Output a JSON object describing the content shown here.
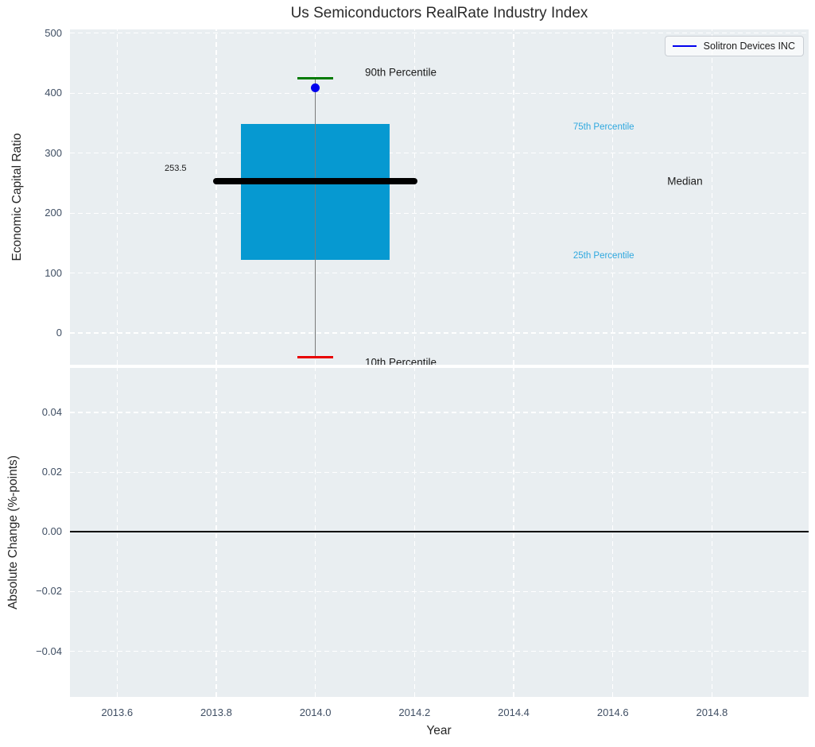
{
  "legend": {
    "label": "Solitron Devices INC",
    "line_color": "#0000ee"
  },
  "colors": {
    "plot_bg": "#e9eef1",
    "grid": "#ffffff",
    "box_fill": "#0699d1",
    "median_line": "#000000",
    "whisker": "#7a7a7a",
    "p90_cap": "#007a00",
    "p10_cap": "#e80000",
    "point_fill": "#0000ee",
    "zero_line": "#000000",
    "tick_label": "#3f4e63",
    "percentile_text": "#2fa8df",
    "black_text": "#1a1a1a"
  },
  "chart_data": [
    {
      "type": "boxplot",
      "title": "Us Semiconductors RealRate Industry Index",
      "ylabel": "Economic Capital Ratio",
      "xlim": [
        2013.505,
        2014.995
      ],
      "ylim": [
        -53,
        506.5
      ],
      "grid": true,
      "ytick_values": [
        0,
        100,
        200,
        300,
        400,
        500
      ],
      "ytick_labels": [
        "0",
        "100",
        "200",
        "300",
        "400",
        "500"
      ],
      "xtick_values": [
        2013.6,
        2013.8,
        2014.0,
        2014.2,
        2014.4,
        2014.6,
        2014.8
      ],
      "box": {
        "x": 2014.0,
        "p10": -40,
        "p25": 122,
        "median": 253.5,
        "p75": 349,
        "p90": 425,
        "box_width": 0.3,
        "median_line_width": 0.413,
        "cap_width": 0.0355
      },
      "series": [
        {
          "name": "Solitron Devices INC",
          "points": [
            {
              "x": 2014.0,
              "y": 409
            }
          ]
        }
      ],
      "annotations": [
        {
          "id": "p90-label",
          "text": "90th Percentile",
          "x": 2014.1,
          "y": 435,
          "color": "#1a1a1a",
          "size": 13.5,
          "align": "left"
        },
        {
          "id": "p75-label",
          "text": "75th Percentile",
          "x": 2014.52,
          "y": 343,
          "color": "#2fa8df",
          "size": 11.5,
          "align": "left"
        },
        {
          "id": "median-value-label",
          "text": "253.5",
          "x": 2013.74,
          "y": 275,
          "color": "#1a1a1a",
          "size": 11,
          "align": "right"
        },
        {
          "id": "median-label",
          "text": "Median",
          "x": 2014.71,
          "y": 253.5,
          "color": "#1a1a1a",
          "size": 13.5,
          "align": "left"
        },
        {
          "id": "p25-label",
          "text": "25th Percentile",
          "x": 2014.52,
          "y": 128,
          "color": "#2fa8df",
          "size": 11.5,
          "align": "left"
        },
        {
          "id": "p10-label",
          "text": "10th Percentile",
          "x": 2014.1,
          "y": -49,
          "color": "#1a1a1a",
          "size": 13.5,
          "align": "left"
        }
      ]
    },
    {
      "type": "line",
      "ylabel": "Absolute Change (%-points)",
      "xlabel": "Year",
      "xlim": [
        2013.505,
        2014.995
      ],
      "ylim": [
        -0.0553,
        0.0549
      ],
      "grid": true,
      "ytick_values": [
        0.04,
        0.02,
        0,
        -0.02,
        -0.04
      ],
      "ytick_labels": [
        "0.04",
        "0.02",
        "0.00",
        "−0.02",
        "−0.04"
      ],
      "xtick_values": [
        2013.6,
        2013.8,
        2014.0,
        2014.2,
        2014.4,
        2014.6,
        2014.8
      ],
      "xtick_labels": [
        "2013.6",
        "2013.8",
        "2014.0",
        "2014.2",
        "2014.4",
        "2014.6",
        "2014.8"
      ],
      "zero_line_y": 0.0,
      "series": []
    }
  ]
}
